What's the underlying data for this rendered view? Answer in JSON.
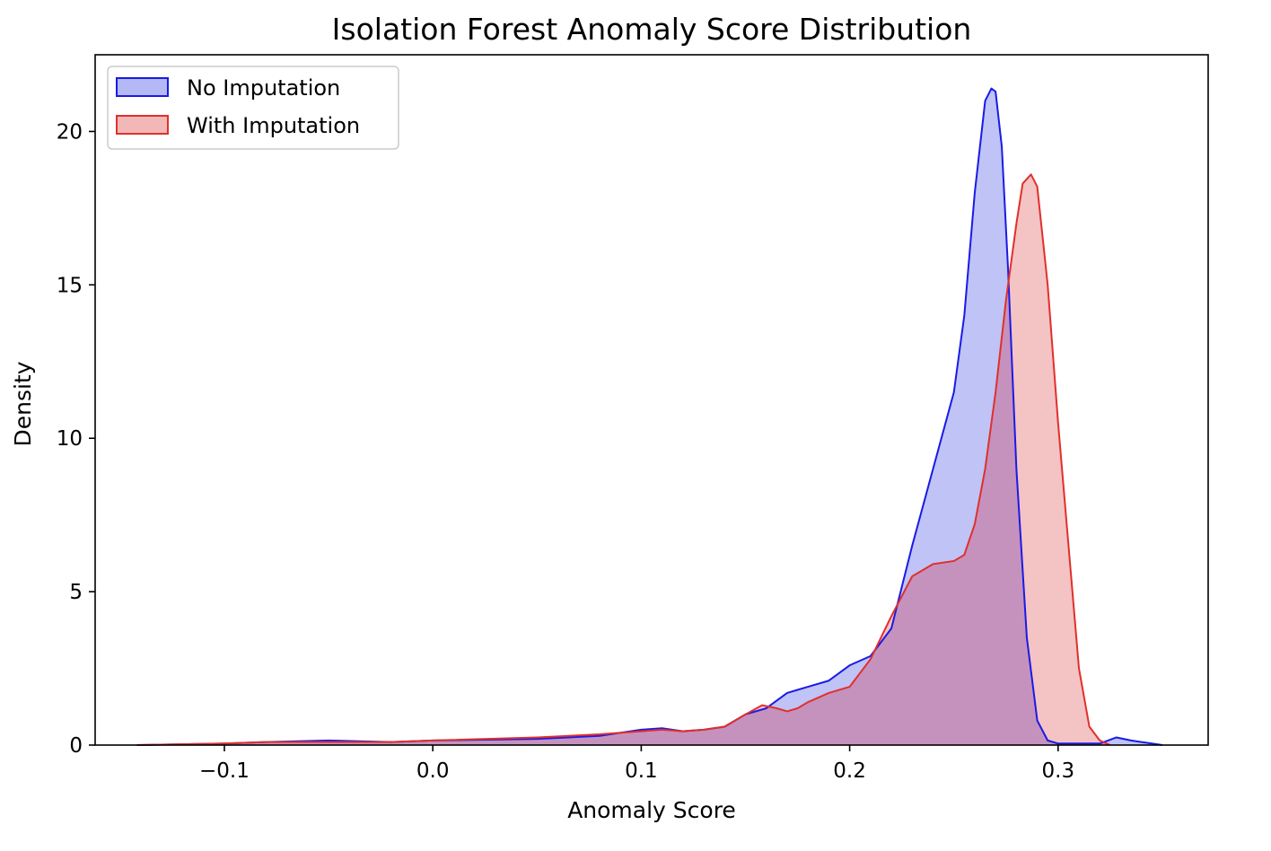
{
  "chart_data": {
    "type": "area",
    "title": "Isolation Forest Anomaly Score Distribution",
    "xlabel": "Anomaly Score",
    "ylabel": "Density",
    "xlim": [
      -0.162,
      0.372
    ],
    "ylim": [
      0,
      22.5
    ],
    "xticks": [
      -0.1,
      0.0,
      0.1,
      0.2,
      0.3
    ],
    "xtick_labels": [
      "−0.1",
      "0.0",
      "0.1",
      "0.2",
      "0.3"
    ],
    "yticks": [
      0,
      5,
      10,
      15,
      20
    ],
    "ytick_labels": [
      "0",
      "5",
      "10",
      "15",
      "20"
    ],
    "grid": false,
    "legend_position": "upper-left",
    "series": [
      {
        "name": "No Imputation",
        "line_color": "#1a1ae6",
        "fill_color": "#b4b8f5",
        "x": [
          -0.142,
          -0.1,
          -0.08,
          -0.05,
          -0.02,
          0.0,
          0.05,
          0.08,
          0.1,
          0.11,
          0.12,
          0.13,
          0.14,
          0.15,
          0.16,
          0.17,
          0.18,
          0.19,
          0.2,
          0.21,
          0.22,
          0.23,
          0.24,
          0.25,
          0.255,
          0.26,
          0.265,
          0.268,
          0.27,
          0.273,
          0.276,
          0.28,
          0.285,
          0.29,
          0.295,
          0.3,
          0.31,
          0.32,
          0.328,
          0.335,
          0.345,
          0.35
        ],
        "y": [
          0.0,
          0.05,
          0.1,
          0.15,
          0.1,
          0.15,
          0.2,
          0.3,
          0.5,
          0.55,
          0.45,
          0.5,
          0.6,
          1.0,
          1.2,
          1.7,
          1.9,
          2.1,
          2.6,
          2.9,
          3.8,
          6.5,
          9.0,
          11.5,
          14.0,
          18.0,
          21.0,
          21.4,
          21.3,
          19.5,
          15.5,
          9.0,
          3.5,
          0.8,
          0.15,
          0.05,
          0.05,
          0.05,
          0.25,
          0.15,
          0.05,
          0.0
        ]
      },
      {
        "name": "With Imputation",
        "line_color": "#e0302c",
        "fill_color": "#f2b8b8",
        "x": [
          -0.142,
          -0.1,
          -0.08,
          -0.05,
          -0.02,
          0.0,
          0.05,
          0.08,
          0.1,
          0.11,
          0.12,
          0.13,
          0.14,
          0.15,
          0.158,
          0.165,
          0.17,
          0.175,
          0.18,
          0.19,
          0.2,
          0.21,
          0.22,
          0.23,
          0.24,
          0.25,
          0.255,
          0.26,
          0.265,
          0.27,
          0.275,
          0.28,
          0.283,
          0.287,
          0.29,
          0.295,
          0.3,
          0.305,
          0.31,
          0.315,
          0.32,
          0.325
        ],
        "y": [
          0.0,
          0.05,
          0.1,
          0.1,
          0.1,
          0.15,
          0.25,
          0.35,
          0.45,
          0.5,
          0.45,
          0.5,
          0.6,
          1.0,
          1.3,
          1.2,
          1.1,
          1.2,
          1.4,
          1.7,
          1.9,
          2.8,
          4.2,
          5.5,
          5.9,
          6.0,
          6.2,
          7.2,
          9.0,
          11.5,
          14.5,
          17.0,
          18.3,
          18.6,
          18.2,
          15.0,
          10.5,
          6.5,
          2.5,
          0.6,
          0.15,
          0.0
        ]
      }
    ]
  }
}
